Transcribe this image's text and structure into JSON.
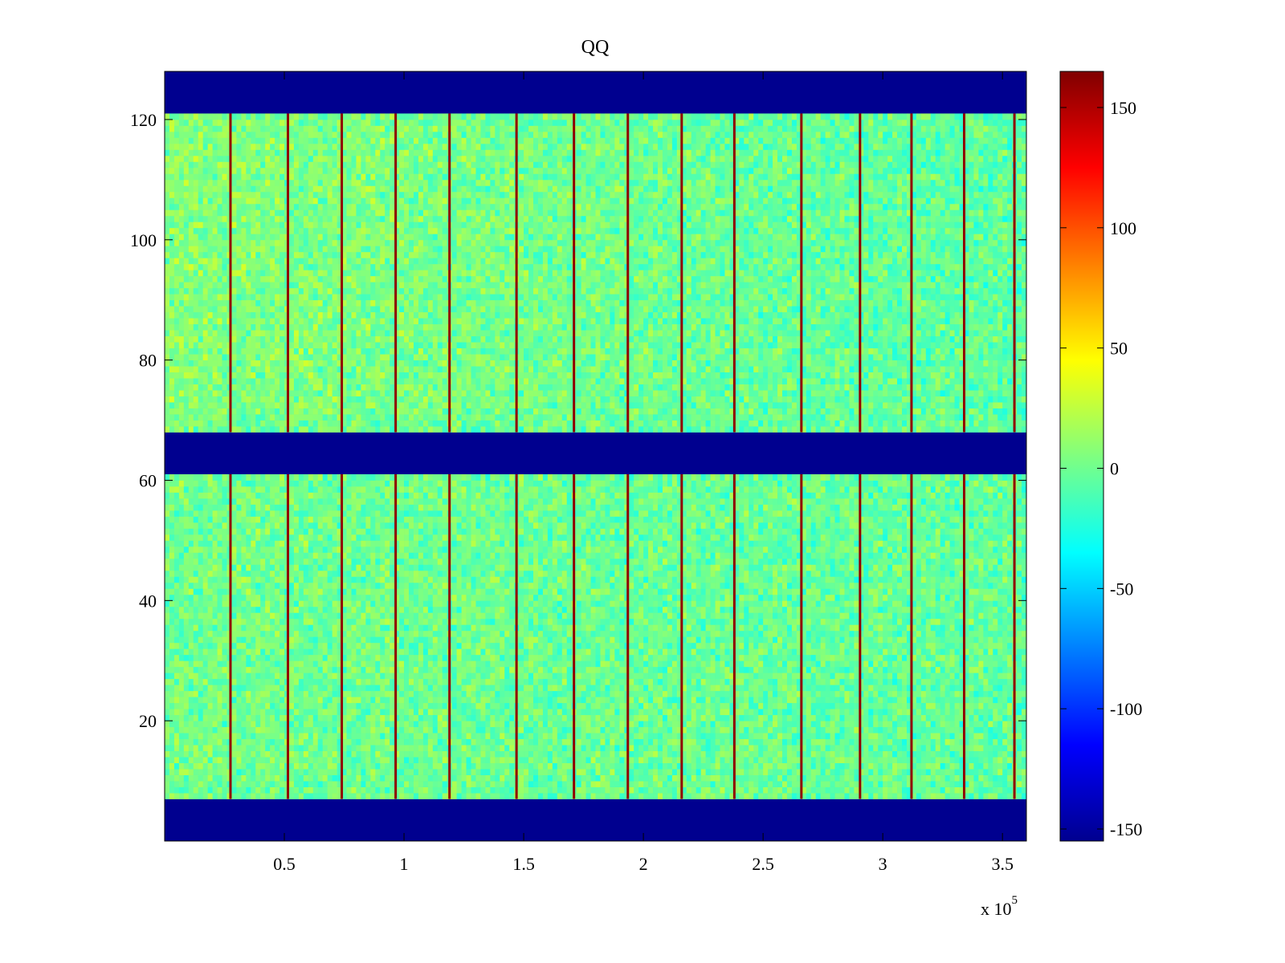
{
  "chart_data": {
    "type": "heatmap",
    "title": "QQ",
    "xlabel": "",
    "ylabel": "",
    "x_exponent_label": "x 10",
    "x_exponent_power": "5",
    "xlim": [
      0,
      360000
    ],
    "ylim": [
      0,
      128
    ],
    "xticks": [
      {
        "value": 50000,
        "label": "0.5"
      },
      {
        "value": 100000,
        "label": "1"
      },
      {
        "value": 150000,
        "label": "1.5"
      },
      {
        "value": 200000,
        "label": "2"
      },
      {
        "value": 250000,
        "label": "2.5"
      },
      {
        "value": 300000,
        "label": "3"
      },
      {
        "value": 350000,
        "label": "3.5"
      }
    ],
    "yticks": [
      {
        "value": 20,
        "label": "20"
      },
      {
        "value": 40,
        "label": "40"
      },
      {
        "value": 60,
        "label": "60"
      },
      {
        "value": 80,
        "label": "80"
      },
      {
        "value": 100,
        "label": "100"
      },
      {
        "value": 120,
        "label": "120"
      }
    ],
    "colorbar": {
      "colormap": "jet",
      "min": -155,
      "max": 165,
      "ticks": [
        {
          "value": -150,
          "label": "-150"
        },
        {
          "value": -100,
          "label": "-100"
        },
        {
          "value": -50,
          "label": "-50"
        },
        {
          "value": 0,
          "label": "0"
        },
        {
          "value": 50,
          "label": "50"
        },
        {
          "value": 100,
          "label": "100"
        },
        {
          "value": 150,
          "label": "150"
        }
      ]
    },
    "masked_bands": [
      {
        "y_range": [
          0,
          7
        ],
        "value": -155
      },
      {
        "y_range": [
          61,
          68
        ],
        "value": -155
      },
      {
        "y_range": [
          121,
          128
        ],
        "value": -155
      }
    ],
    "data_bands": [
      {
        "y_range": [
          7,
          61
        ],
        "typical_value_range": [
          -40,
          40
        ]
      },
      {
        "y_range": [
          68,
          121
        ],
        "typical_value_range": [
          -40,
          40
        ]
      }
    ],
    "vertical_lines": [
      {
        "x": 27500,
        "value": 160
      },
      {
        "x": 51500,
        "value": 160
      },
      {
        "x": 74000,
        "value": 160
      },
      {
        "x": 96500,
        "value": 160
      },
      {
        "x": 119000,
        "value": 160
      },
      {
        "x": 147000,
        "value": 160
      },
      {
        "x": 171000,
        "value": 160
      },
      {
        "x": 193500,
        "value": 160
      },
      {
        "x": 216000,
        "value": 160
      },
      {
        "x": 238000,
        "value": 160
      },
      {
        "x": 266000,
        "value": 160
      },
      {
        "x": 290500,
        "value": 160
      },
      {
        "x": 312000,
        "value": 160
      },
      {
        "x": 334000,
        "value": 160
      },
      {
        "x": 355000,
        "value": 160
      }
    ]
  }
}
